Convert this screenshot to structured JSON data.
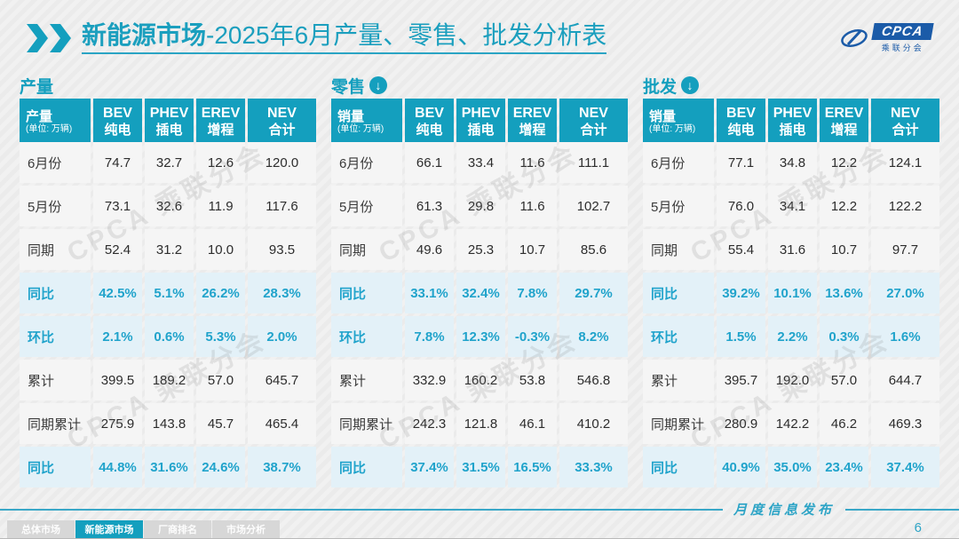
{
  "header": {
    "title_bold": "新能源市场",
    "title_rest": "-2025年6月产量、零售、批发分析表",
    "logo_text": "CPCA",
    "logo_subtext": "乘联分会"
  },
  "columns": [
    {
      "en": "BEV",
      "zh": "纯电"
    },
    {
      "en": "PHEV",
      "zh": "插电"
    },
    {
      "en": "EREV",
      "zh": "增程"
    },
    {
      "en": "NEV",
      "zh": "合计"
    }
  ],
  "icons": {
    "down_arrow_glyph": "↓"
  },
  "watermark": "CPCA 乘联分会",
  "tables": [
    {
      "section_label": "产量",
      "unit_label": "产量",
      "unit_sub": "(单位: 万辆)",
      "rows": [
        {
          "label": "6月份",
          "highlight": false,
          "values": [
            "74.7",
            "32.7",
            "12.6",
            "120.0"
          ]
        },
        {
          "label": "5月份",
          "highlight": false,
          "values": [
            "73.1",
            "32.6",
            "11.9",
            "117.6"
          ]
        },
        {
          "label": "同期",
          "highlight": false,
          "values": [
            "52.4",
            "31.2",
            "10.0",
            "93.5"
          ]
        },
        {
          "label": "同比",
          "highlight": true,
          "values": [
            "42.5%",
            "5.1%",
            "26.2%",
            "28.3%"
          ]
        },
        {
          "label": "环比",
          "highlight": true,
          "values": [
            "2.1%",
            "0.6%",
            "5.3%",
            "2.0%"
          ]
        },
        {
          "label": "累计",
          "highlight": false,
          "values": [
            "399.5",
            "189.2",
            "57.0",
            "645.7"
          ]
        },
        {
          "label": "同期累计",
          "highlight": false,
          "values": [
            "275.9",
            "143.8",
            "45.7",
            "465.4"
          ]
        },
        {
          "label": "同比",
          "highlight": true,
          "values": [
            "44.8%",
            "31.6%",
            "24.6%",
            "38.7%"
          ]
        }
      ]
    },
    {
      "section_label": "零售",
      "unit_label": "销量",
      "unit_sub": "(单位: 万辆)",
      "rows": [
        {
          "label": "6月份",
          "highlight": false,
          "values": [
            "66.1",
            "33.4",
            "11.6",
            "111.1"
          ]
        },
        {
          "label": "5月份",
          "highlight": false,
          "values": [
            "61.3",
            "29.8",
            "11.6",
            "102.7"
          ]
        },
        {
          "label": "同期",
          "highlight": false,
          "values": [
            "49.6",
            "25.3",
            "10.7",
            "85.6"
          ]
        },
        {
          "label": "同比",
          "highlight": true,
          "values": [
            "33.1%",
            "32.4%",
            "7.8%",
            "29.7%"
          ]
        },
        {
          "label": "环比",
          "highlight": true,
          "values": [
            "7.8%",
            "12.3%",
            "-0.3%",
            "8.2%"
          ]
        },
        {
          "label": "累计",
          "highlight": false,
          "values": [
            "332.9",
            "160.2",
            "53.8",
            "546.8"
          ]
        },
        {
          "label": "同期累计",
          "highlight": false,
          "values": [
            "242.3",
            "121.8",
            "46.1",
            "410.2"
          ]
        },
        {
          "label": "同比",
          "highlight": true,
          "values": [
            "37.4%",
            "31.5%",
            "16.5%",
            "33.3%"
          ]
        }
      ]
    },
    {
      "section_label": "批发",
      "unit_label": "销量",
      "unit_sub": "(单位: 万辆)",
      "rows": [
        {
          "label": "6月份",
          "highlight": false,
          "values": [
            "77.1",
            "34.8",
            "12.2",
            "124.1"
          ]
        },
        {
          "label": "5月份",
          "highlight": false,
          "values": [
            "76.0",
            "34.1",
            "12.2",
            "122.2"
          ]
        },
        {
          "label": "同期",
          "highlight": false,
          "values": [
            "55.4",
            "31.6",
            "10.7",
            "97.7"
          ]
        },
        {
          "label": "同比",
          "highlight": true,
          "values": [
            "39.2%",
            "10.1%",
            "13.6%",
            "27.0%"
          ]
        },
        {
          "label": "环比",
          "highlight": true,
          "values": [
            "1.5%",
            "2.2%",
            "0.3%",
            "1.6%"
          ]
        },
        {
          "label": "累计",
          "highlight": false,
          "values": [
            "395.7",
            "192.0",
            "57.0",
            "644.7"
          ]
        },
        {
          "label": "同期累计",
          "highlight": false,
          "values": [
            "280.9",
            "142.2",
            "46.2",
            "469.3"
          ]
        },
        {
          "label": "同比",
          "highlight": true,
          "values": [
            "40.9%",
            "35.0%",
            "23.4%",
            "37.4%"
          ]
        }
      ]
    }
  ],
  "footer": {
    "caption": "月度信息发布",
    "page_number": "6",
    "tabs": [
      {
        "label": "总体市场",
        "active": false
      },
      {
        "label": "新能源市场",
        "active": true
      },
      {
        "label": "厂商排名",
        "active": false
      },
      {
        "label": "市场分析",
        "active": false
      }
    ]
  },
  "colors": {
    "accent": "#149FBE",
    "highlight_bg": "#E3F1F8",
    "highlight_text": "#20A3CB",
    "logo_blue": "#1B5BA8"
  }
}
